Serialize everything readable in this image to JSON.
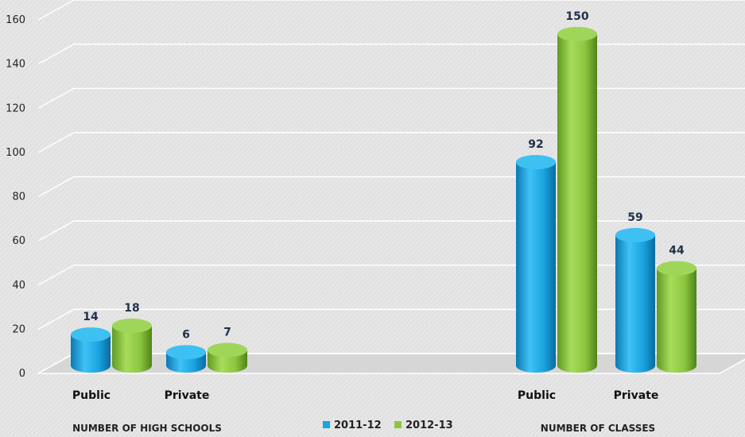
{
  "chart_data": {
    "type": "bar",
    "style": "3d-cylinder",
    "groups": [
      {
        "name": "NUMBER OF HIGH SCHOOLS",
        "categories": [
          "Public",
          "Private"
        ]
      },
      {
        "name": "NUMBER OF CLASSES",
        "categories": [
          "Public",
          "Private"
        ]
      }
    ],
    "categories": [
      "Public",
      "Private",
      "Public",
      "Private"
    ],
    "series": [
      {
        "name": "2011-12",
        "color": "#1aa3e0",
        "values": [
          14,
          6,
          92,
          59
        ]
      },
      {
        "name": "2012-13",
        "color": "#8cc63f",
        "values": [
          18,
          7,
          150,
          44
        ]
      }
    ],
    "y_ticks": [
      0,
      20,
      40,
      60,
      80,
      100,
      120,
      140,
      160
    ],
    "ylim": [
      0,
      160
    ],
    "grid": true,
    "legend_position": "bottom-center"
  }
}
